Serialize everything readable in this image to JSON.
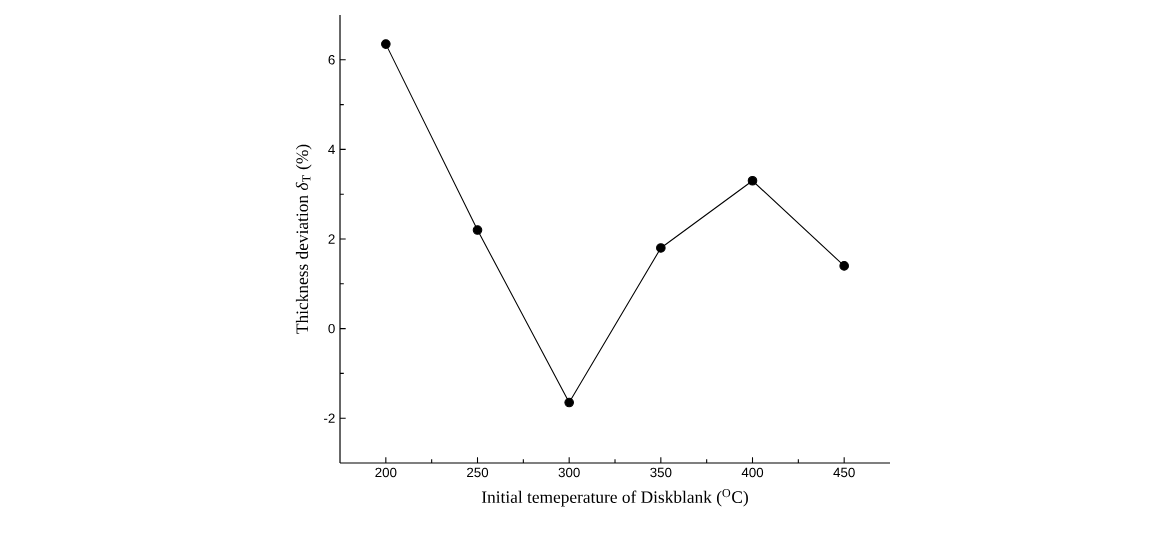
{
  "chart_data": {
    "type": "line",
    "xlabel": "Initial temeperature of Diskblank ($^{O}$C)",
    "ylabel": "Thickness deviation *δ*$_{T}$ (%)",
    "x": [
      200,
      250,
      300,
      350,
      400,
      450
    ],
    "series": [
      {
        "color": "#000000",
        "values": [
          6.35,
          2.2,
          -1.65,
          1.8,
          3.3,
          1.4
        ]
      }
    ],
    "xlim": [
      175,
      475
    ],
    "ylim": [
      -3,
      7
    ],
    "xticks": [
      200,
      250,
      300,
      350,
      400,
      450
    ],
    "yticks": [
      -2,
      0,
      2,
      4,
      6
    ],
    "marker": "circle",
    "line_style": "solid"
  }
}
